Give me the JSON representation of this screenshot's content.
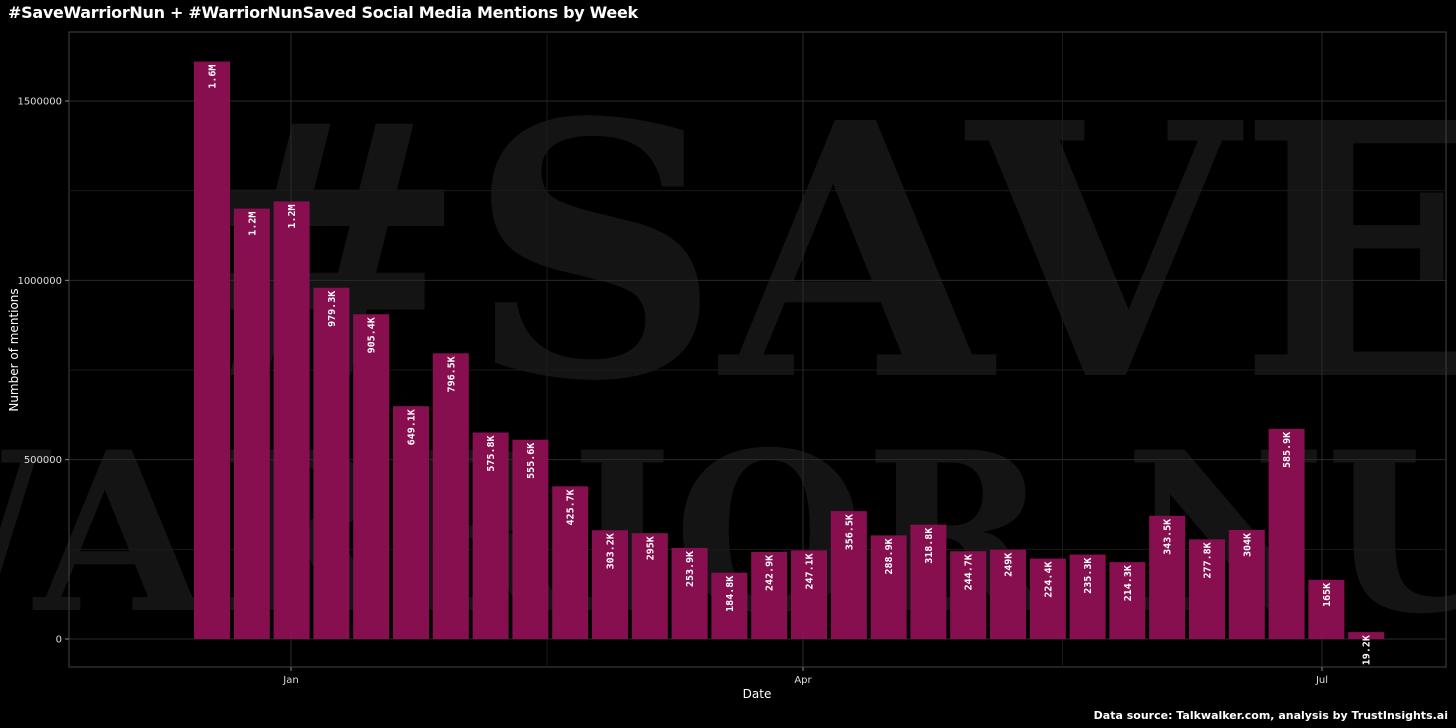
{
  "chart_data": {
    "type": "bar",
    "title": "#SaveWarriorNun + #WarriorNunSaved Social Media Mentions by Week",
    "xlabel": "Date",
    "ylabel": "Number of mentions",
    "x_tick_labels": [
      "Jan",
      "Apr",
      "Jul"
    ],
    "y_ticks": [
      0,
      500000,
      1000000,
      1500000
    ],
    "ylim": [
      0,
      1700000
    ],
    "grid": true,
    "bar_color": "#8b0f52",
    "background": "#000000",
    "watermark": "#SAVE WARRIOR NUN",
    "values": [
      1610000,
      1200000,
      1220000,
      979300,
      905400,
      649100,
      796500,
      575800,
      555600,
      425700,
      303200,
      295000,
      253900,
      184800,
      242900,
      247100,
      356500,
      288900,
      318800,
      244700,
      249000,
      224400,
      235300,
      214300,
      343500,
      277800,
      304000,
      585900,
      165000,
      19200
    ],
    "labels": [
      "1.6M",
      "1.2M",
      "1.2M",
      "979.3K",
      "905.4K",
      "649.1K",
      "796.5K",
      "575.8K",
      "555.6K",
      "425.7K",
      "303.2K",
      "295K",
      "253.9K",
      "184.8K",
      "242.9K",
      "247.1K",
      "356.5K",
      "288.9K",
      "318.8K",
      "244.7K",
      "249K",
      "224.4K",
      "235.3K",
      "214.3K",
      "343.5K",
      "277.8K",
      "304K",
      "585.9K",
      "165K",
      "19.2K"
    ]
  },
  "footer": {
    "source": "Data source: Talkwalker.com, analysis by TrustInsights.ai"
  }
}
